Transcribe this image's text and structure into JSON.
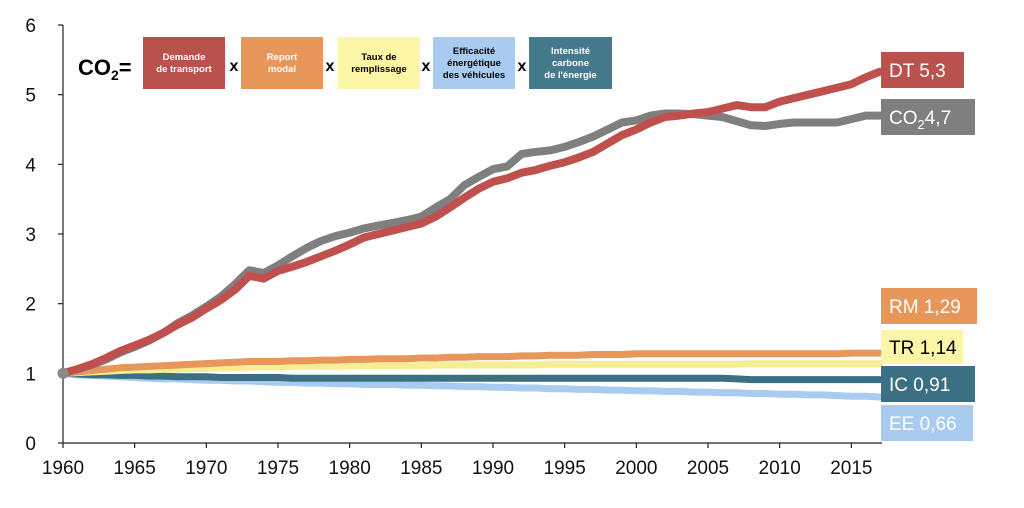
{
  "chart_data": {
    "type": "line",
    "title": "",
    "xlabel": "",
    "ylabel": "",
    "xlim": [
      1960,
      2017
    ],
    "ylim": [
      0,
      6
    ],
    "x_ticks": [
      "1960",
      "1965",
      "1970",
      "1975",
      "1980",
      "1985",
      "1990",
      "1995",
      "2000",
      "2005",
      "2010",
      "2015"
    ],
    "y_ticks": [
      "0",
      "1",
      "2",
      "3",
      "4",
      "5",
      "6"
    ],
    "x": [
      1960,
      1961,
      1962,
      1963,
      1964,
      1965,
      1966,
      1967,
      1968,
      1969,
      1970,
      1971,
      1972,
      1973,
      1974,
      1975,
      1976,
      1977,
      1978,
      1979,
      1980,
      1981,
      1982,
      1983,
      1984,
      1985,
      1986,
      1987,
      1988,
      1989,
      1990,
      1991,
      1992,
      1993,
      1994,
      1995,
      1996,
      1997,
      1998,
      1999,
      2000,
      2001,
      2002,
      2003,
      2004,
      2005,
      2006,
      2007,
      2008,
      2009,
      2010,
      2011,
      2012,
      2013,
      2014,
      2015,
      2016,
      2017
    ],
    "series": [
      {
        "name": "DT",
        "label": "DT 5,3",
        "color": "#c0504d",
        "values": [
          1.0,
          1.06,
          1.13,
          1.22,
          1.32,
          1.4,
          1.48,
          1.58,
          1.7,
          1.8,
          1.93,
          2.05,
          2.2,
          2.4,
          2.36,
          2.47,
          2.53,
          2.6,
          2.68,
          2.76,
          2.85,
          2.95,
          3.0,
          3.05,
          3.1,
          3.15,
          3.25,
          3.38,
          3.52,
          3.65,
          3.75,
          3.8,
          3.88,
          3.92,
          3.98,
          4.03,
          4.1,
          4.18,
          4.3,
          4.42,
          4.5,
          4.6,
          4.68,
          4.7,
          4.73,
          4.75,
          4.8,
          4.85,
          4.82,
          4.82,
          4.9,
          4.95,
          5.0,
          5.05,
          5.1,
          5.15,
          5.25,
          5.33
        ]
      },
      {
        "name": "CO2",
        "label": "CO",
        "label_sub": "2",
        "label_value": "4,7",
        "color": "#7f7f7f",
        "values": [
          1.0,
          1.06,
          1.12,
          1.2,
          1.3,
          1.38,
          1.47,
          1.58,
          1.72,
          1.83,
          1.96,
          2.1,
          2.28,
          2.48,
          2.44,
          2.55,
          2.68,
          2.8,
          2.9,
          2.97,
          3.02,
          3.08,
          3.12,
          3.16,
          3.2,
          3.25,
          3.38,
          3.5,
          3.7,
          3.82,
          3.93,
          3.97,
          4.15,
          4.18,
          4.2,
          4.25,
          4.32,
          4.4,
          4.5,
          4.6,
          4.63,
          4.7,
          4.73,
          4.73,
          4.72,
          4.7,
          4.68,
          4.62,
          4.56,
          4.55,
          4.58,
          4.6,
          4.6,
          4.6,
          4.6,
          4.65,
          4.7,
          4.7
        ]
      },
      {
        "name": "RM",
        "label": "RM 1,29",
        "color": "#e8975a",
        "values": [
          1.0,
          1.02,
          1.04,
          1.06,
          1.08,
          1.09,
          1.1,
          1.11,
          1.12,
          1.13,
          1.14,
          1.15,
          1.16,
          1.17,
          1.17,
          1.17,
          1.18,
          1.18,
          1.19,
          1.19,
          1.2,
          1.2,
          1.21,
          1.21,
          1.21,
          1.22,
          1.22,
          1.23,
          1.23,
          1.24,
          1.24,
          1.24,
          1.25,
          1.25,
          1.26,
          1.26,
          1.26,
          1.27,
          1.27,
          1.27,
          1.28,
          1.28,
          1.28,
          1.28,
          1.28,
          1.28,
          1.28,
          1.28,
          1.28,
          1.28,
          1.28,
          1.28,
          1.28,
          1.28,
          1.28,
          1.29,
          1.29,
          1.29
        ]
      },
      {
        "name": "TR",
        "label": "TR 1,14",
        "color": "#f6ee94",
        "values": [
          1.0,
          1.01,
          1.02,
          1.03,
          1.04,
          1.05,
          1.05,
          1.06,
          1.06,
          1.07,
          1.07,
          1.08,
          1.08,
          1.09,
          1.09,
          1.09,
          1.1,
          1.1,
          1.1,
          1.1,
          1.11,
          1.11,
          1.11,
          1.11,
          1.11,
          1.11,
          1.12,
          1.12,
          1.12,
          1.12,
          1.12,
          1.12,
          1.12,
          1.12,
          1.13,
          1.13,
          1.13,
          1.13,
          1.13,
          1.13,
          1.13,
          1.13,
          1.13,
          1.13,
          1.13,
          1.13,
          1.13,
          1.13,
          1.14,
          1.14,
          1.14,
          1.14,
          1.14,
          1.14,
          1.14,
          1.14,
          1.14,
          1.14
        ]
      },
      {
        "name": "IC",
        "label": "IC 0,91",
        "color": "#3b6f83",
        "values": [
          1.0,
          0.99,
          0.98,
          0.98,
          0.97,
          0.97,
          0.96,
          0.96,
          0.95,
          0.95,
          0.95,
          0.94,
          0.94,
          0.94,
          0.94,
          0.94,
          0.93,
          0.93,
          0.93,
          0.93,
          0.93,
          0.93,
          0.93,
          0.93,
          0.93,
          0.93,
          0.93,
          0.93,
          0.93,
          0.93,
          0.93,
          0.93,
          0.93,
          0.93,
          0.93,
          0.93,
          0.93,
          0.93,
          0.93,
          0.93,
          0.93,
          0.93,
          0.93,
          0.93,
          0.93,
          0.93,
          0.93,
          0.92,
          0.91,
          0.91,
          0.91,
          0.91,
          0.91,
          0.91,
          0.91,
          0.91,
          0.91,
          0.91
        ]
      },
      {
        "name": "EE",
        "label": "EE 0,66",
        "color": "#a8cbef",
        "values": [
          1.0,
          0.98,
          0.97,
          0.96,
          0.95,
          0.94,
          0.93,
          0.92,
          0.92,
          0.91,
          0.9,
          0.9,
          0.89,
          0.89,
          0.88,
          0.87,
          0.87,
          0.86,
          0.86,
          0.85,
          0.85,
          0.84,
          0.84,
          0.84,
          0.83,
          0.83,
          0.82,
          0.82,
          0.81,
          0.81,
          0.8,
          0.8,
          0.79,
          0.79,
          0.78,
          0.78,
          0.77,
          0.77,
          0.76,
          0.76,
          0.75,
          0.75,
          0.74,
          0.74,
          0.73,
          0.73,
          0.72,
          0.72,
          0.71,
          0.71,
          0.7,
          0.7,
          0.69,
          0.69,
          0.68,
          0.67,
          0.67,
          0.66
        ]
      }
    ],
    "formula": {
      "lhs": "CO",
      "lhs_sub": "2",
      "lhs_eq": "=",
      "operator": "x",
      "factors": [
        {
          "lines": [
            "Demande",
            "de transport"
          ],
          "color": "#b9524d",
          "text_color": "#ffffff"
        },
        {
          "lines": [
            "Report",
            "modal"
          ],
          "color": "#e8975a",
          "text_color": "#ffffff"
        },
        {
          "lines": [
            "Taux de",
            "remplissage"
          ],
          "color": "#fbf6a6",
          "text_color": "#000000"
        },
        {
          "lines": [
            "Efficacité",
            "énergétique",
            "des véhicules"
          ],
          "color": "#a8cbef",
          "text_color": "#000000"
        },
        {
          "lines": [
            "Intensité",
            "carbone",
            "de l'énergie"
          ],
          "color": "#457a8d",
          "text_color": "#ffffff"
        }
      ]
    }
  }
}
